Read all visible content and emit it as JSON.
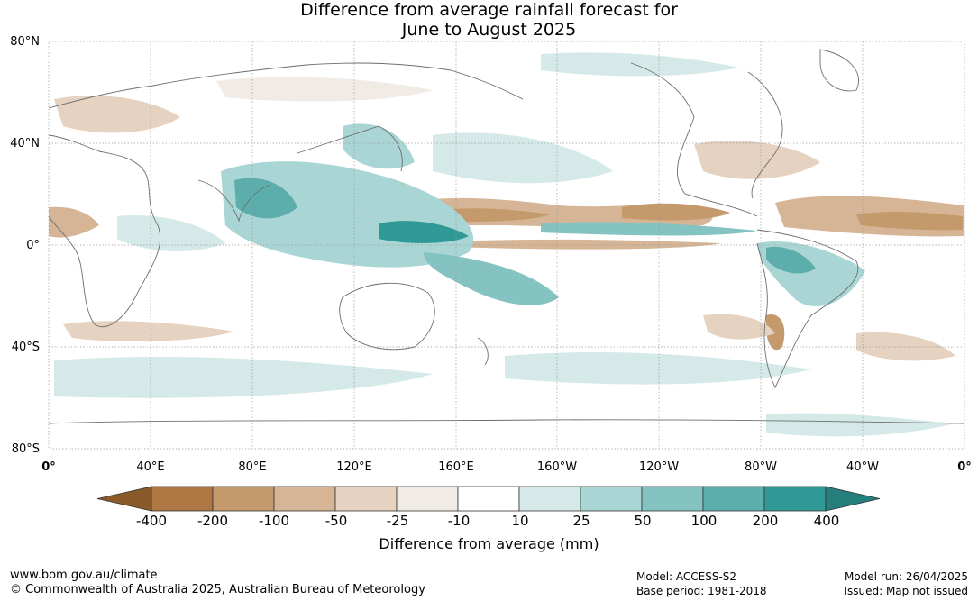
{
  "title_line1": "Difference from average rainfall forecast for",
  "title_line2": "June to August 2025",
  "map": {
    "lat_labels": [
      "80°N",
      "40°N",
      "0°",
      "40°S",
      "80°S"
    ],
    "lon_labels": [
      "0°",
      "40°E",
      "80°E",
      "120°E",
      "160°E",
      "160°W",
      "120°W",
      "80°W",
      "40°W",
      "0°"
    ],
    "land_color": "#ffffff",
    "coast_color": "#6e6e6e"
  },
  "colorbar": {
    "title": "Difference from average (mm)",
    "tick_labels": [
      "-400",
      "-200",
      "-100",
      "-50",
      "-25",
      "-10",
      "10",
      "25",
      "50",
      "100",
      "200",
      "400"
    ],
    "colors": [
      "#8b5a2b",
      "#ad7743",
      "#c49a6c",
      "#d5b595",
      "#e5d2c0",
      "#f1ebe6",
      "#ffffff",
      "#d5e9e8",
      "#a9d6d5",
      "#84c3c2",
      "#5caeac",
      "#2f9996",
      "#257f7d"
    ]
  },
  "footer": {
    "url": "www.bom.gov.au/climate",
    "copyright": "© Commonwealth of Australia 2025, Australian Bureau of Meteorology",
    "model": "Model: ACCESS-S2",
    "base_period": "Base period: 1981-2018",
    "model_run": "Model run: 26/04/2025",
    "issued": "Issued: Map not issued"
  }
}
